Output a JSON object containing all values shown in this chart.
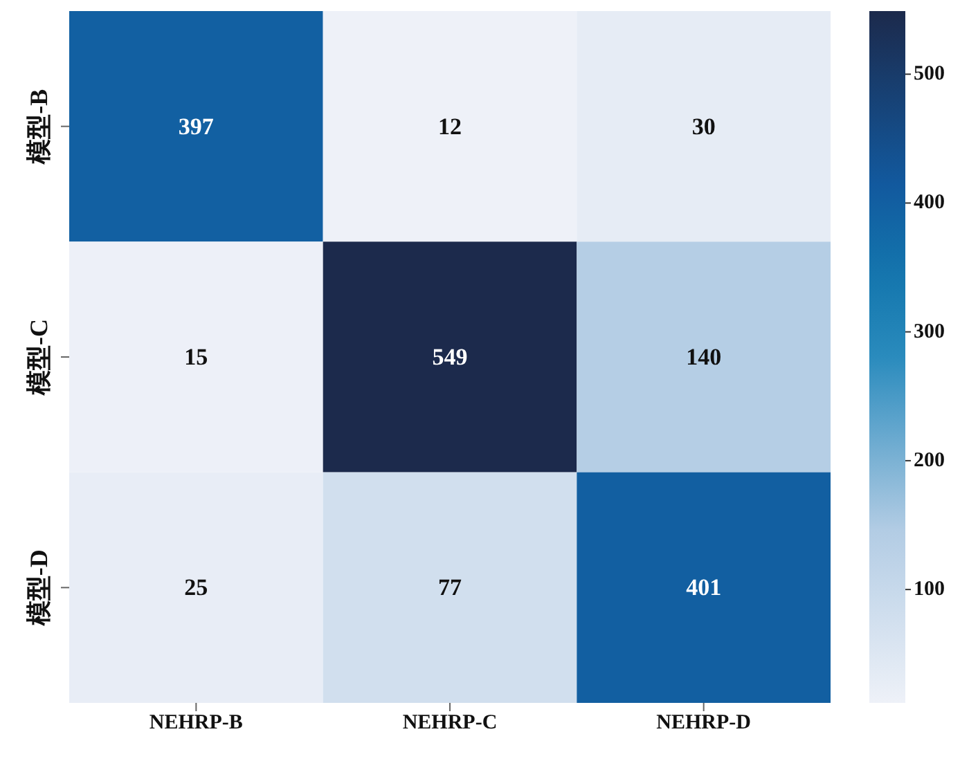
{
  "chart_data": {
    "type": "heatmap",
    "categories": [
      "NEHRP-B",
      "NEHRP-C",
      "NEHRP-D"
    ],
    "y_categories": [
      "模型-B",
      "模型-C",
      "模型-D"
    ],
    "cells": [
      [
        397,
        12,
        30
      ],
      [
        15,
        549,
        140
      ],
      [
        25,
        77,
        401
      ]
    ],
    "clim": [
      12,
      549
    ],
    "cticks": [
      100,
      200,
      300,
      400,
      500
    ],
    "data_labels": true
  }
}
